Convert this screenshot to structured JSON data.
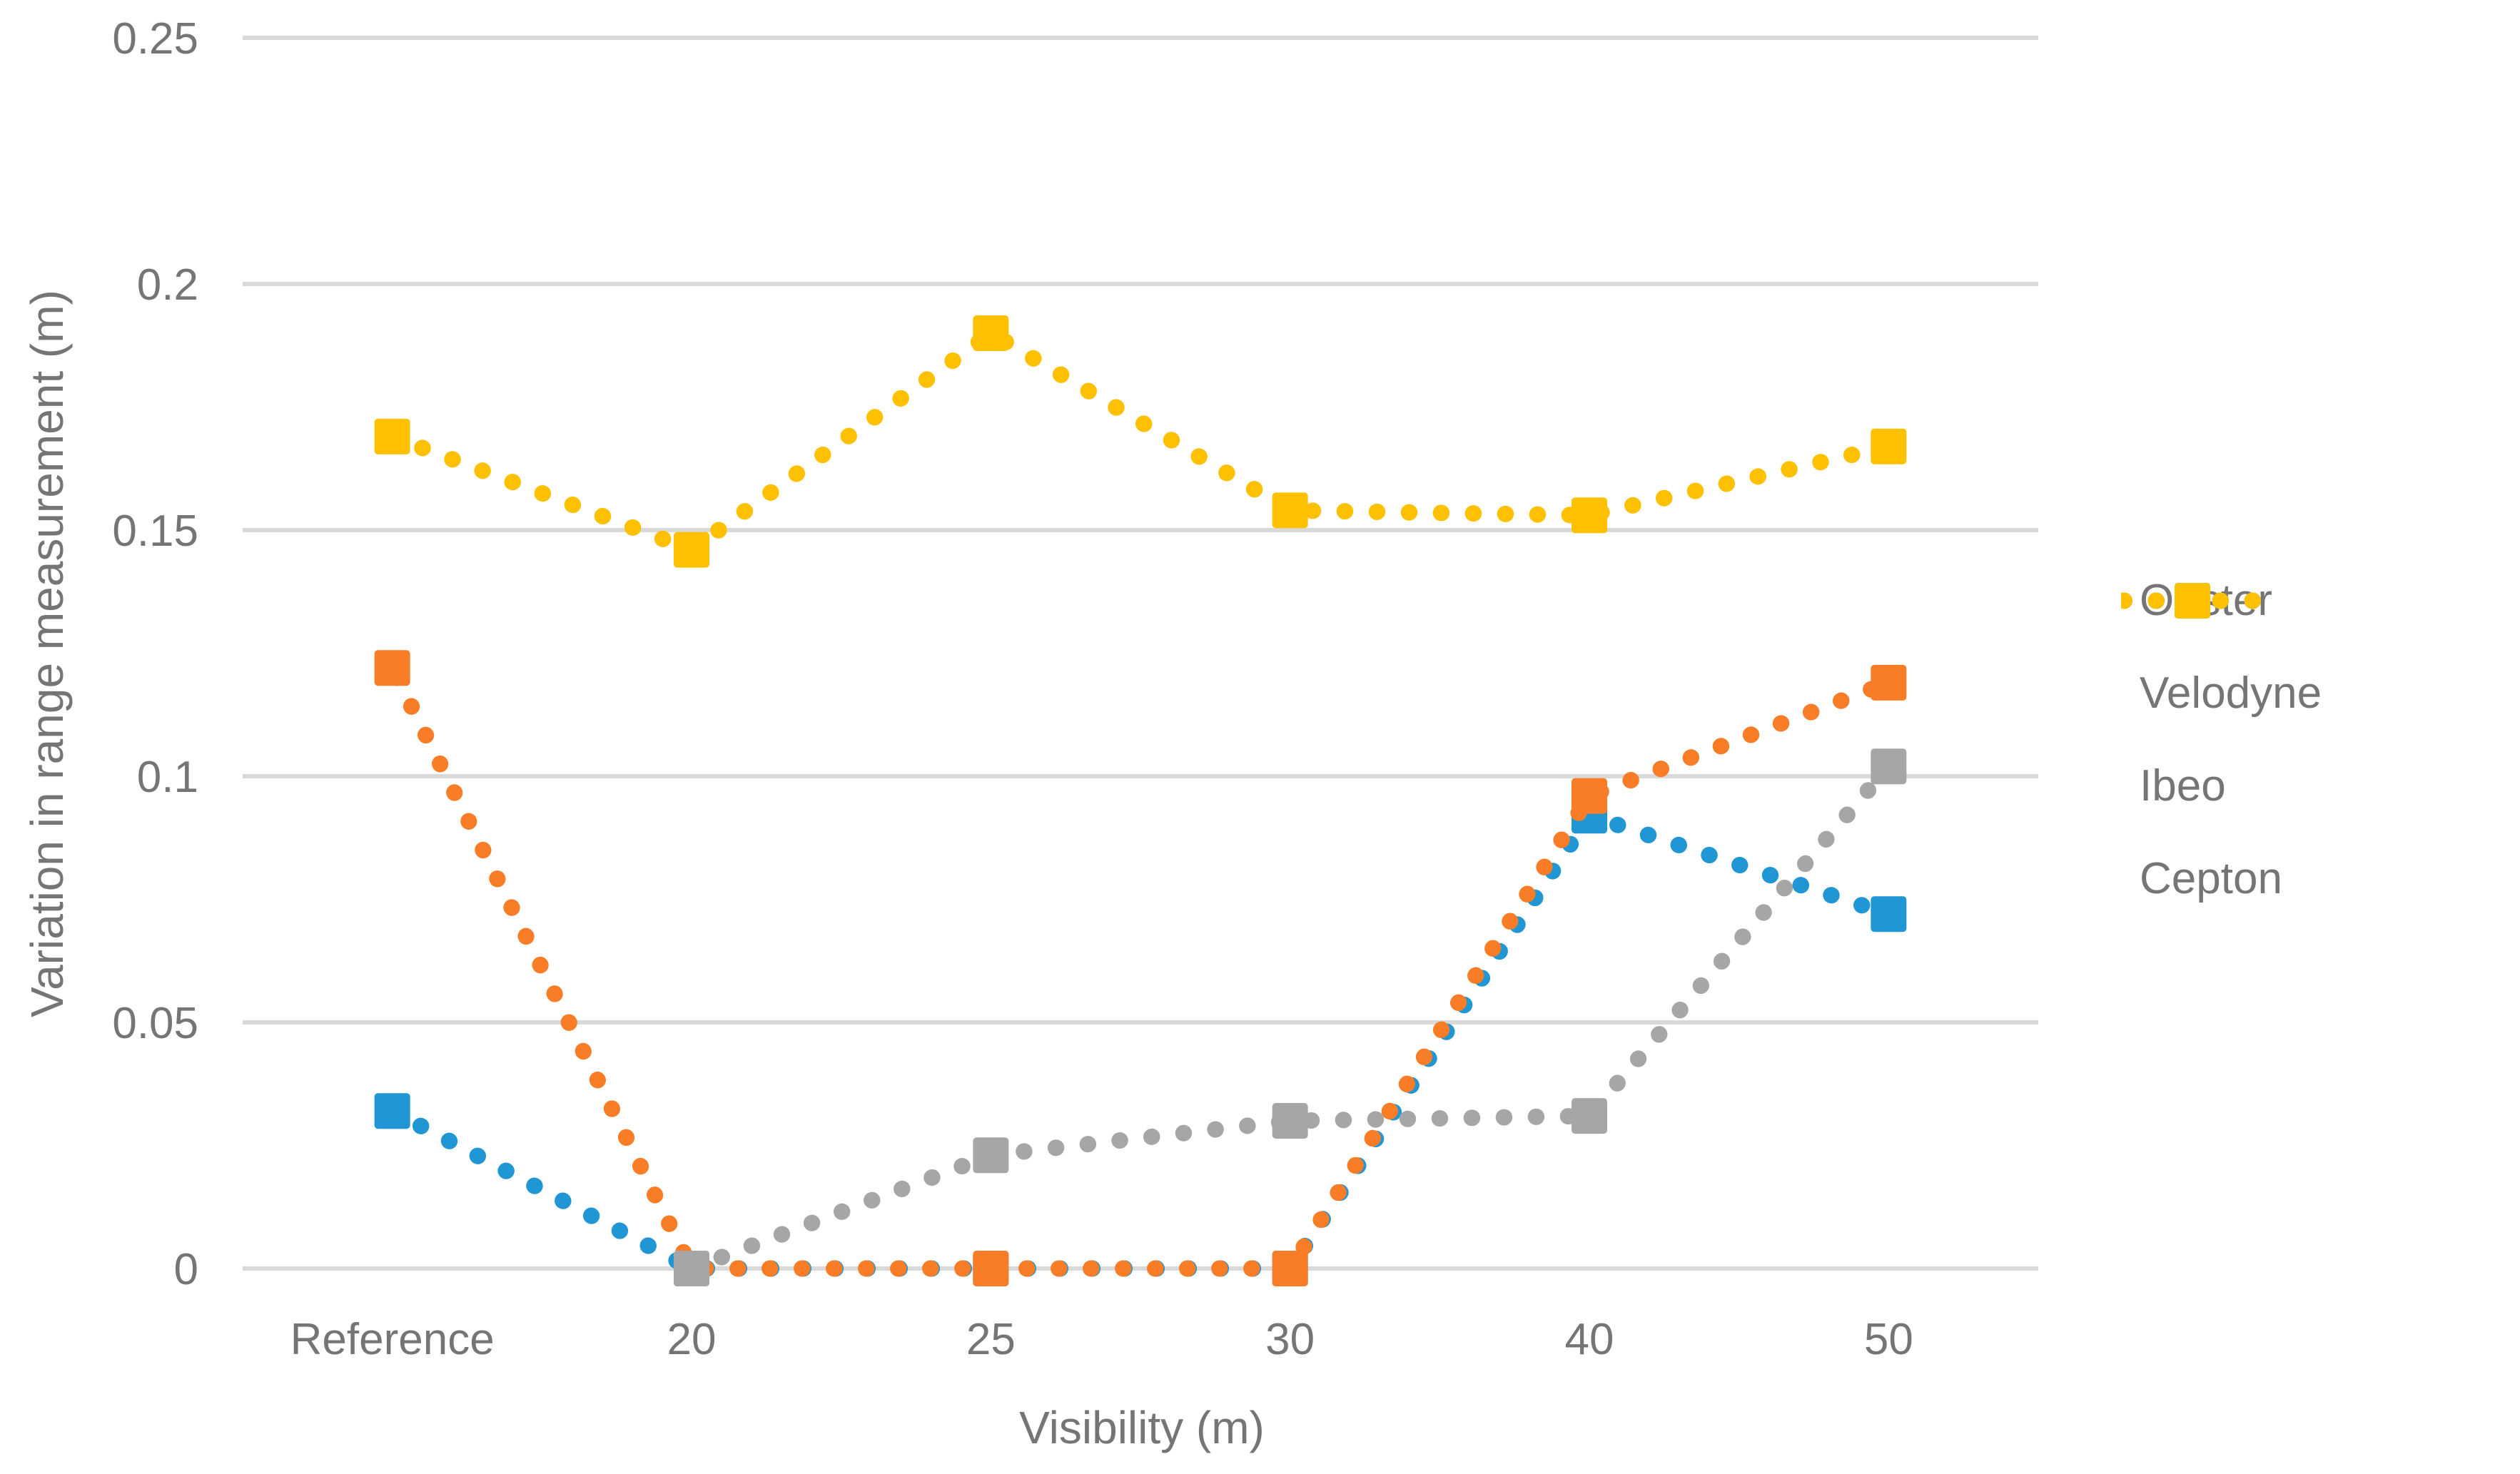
{
  "chart_data": {
    "type": "line",
    "title": "",
    "xlabel": "Visibility (m)",
    "ylabel": "Variation in range measurement (m)",
    "categories": [
      "Reference",
      "20",
      "25",
      "30",
      "40",
      "50"
    ],
    "series": [
      {
        "name": "Ouster",
        "color": "#2097D4",
        "values": [
          0.032,
          0,
          0,
          0,
          0.092,
          0.072
        ]
      },
      {
        "name": "Velodyne",
        "color": "#F97D27",
        "values": [
          0.122,
          0,
          0,
          0,
          0.096,
          0.119
        ]
      },
      {
        "name": "Ibeo",
        "color": "#A6A6A6",
        "values": [
          null,
          0,
          0.023,
          0.03,
          0.031,
          0.102
        ]
      },
      {
        "name": "Cepton",
        "color": "#FFC000",
        "values": [
          0.169,
          0.146,
          0.19,
          0.154,
          0.153,
          0.167
        ]
      }
    ],
    "ylim": [
      0,
      0.25
    ],
    "ytick_step": 0.05,
    "ytick_labels": [
      "0",
      "0.05",
      "0.1",
      "0.15",
      "0.2",
      "0.25"
    ],
    "grid": true,
    "legend_position": "right",
    "line_style": "dotted",
    "marker": "square",
    "colors": {
      "gridline": "#D9D9D9",
      "text": "#757575",
      "background": "#FFFFFF"
    }
  }
}
